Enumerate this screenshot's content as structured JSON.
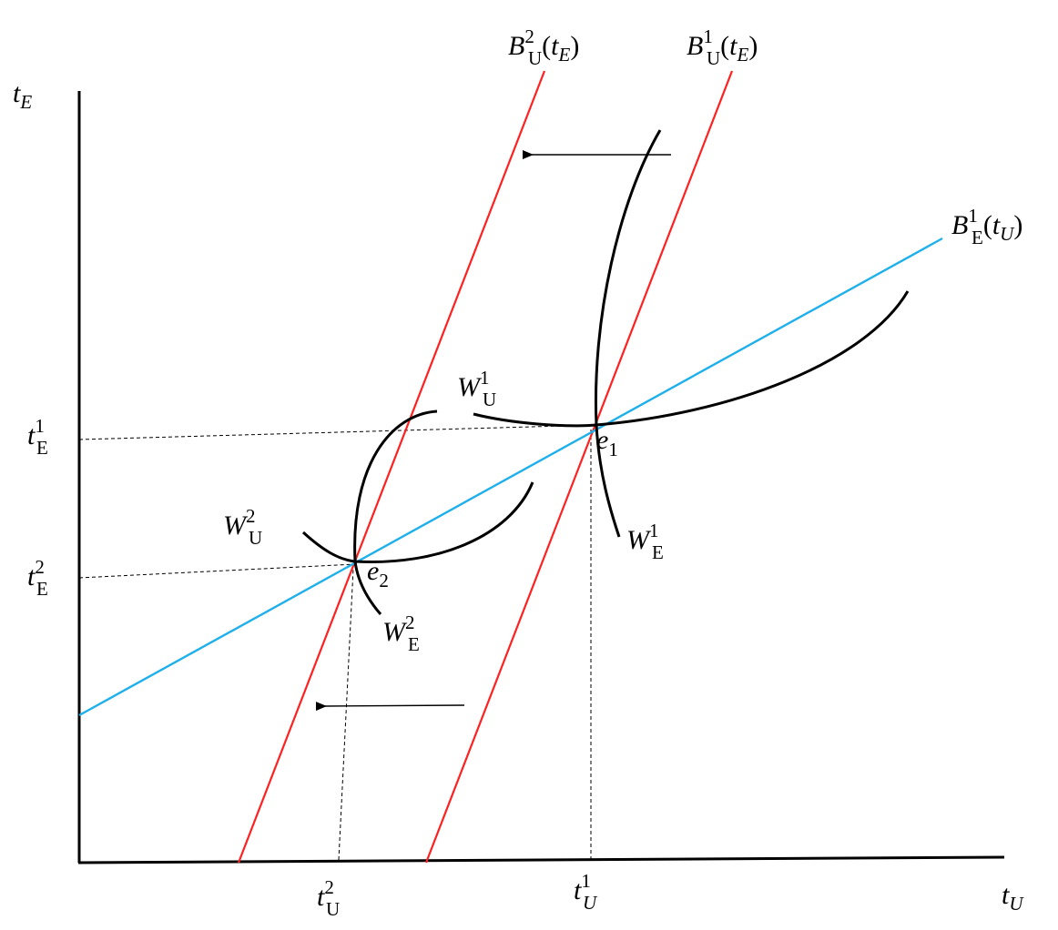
{
  "labels": {
    "y_axis": [
      "t",
      "E"
    ],
    "x_axis": [
      "t",
      "U"
    ],
    "b_u2": [
      "B",
      "2",
      "U",
      "(",
      "t",
      "E",
      ")"
    ],
    "b_u1": [
      "B",
      "1",
      "U",
      "(",
      "t",
      "E",
      ")"
    ],
    "b_e1": [
      "B",
      "1",
      "E",
      "(",
      "t",
      "U",
      ")"
    ],
    "w_u1": [
      "W",
      "1",
      "U"
    ],
    "w_u2": [
      "W",
      "2",
      "U"
    ],
    "w_e1": [
      "W",
      "1",
      "E"
    ],
    "w_e2": [
      "W",
      "2",
      "E"
    ],
    "e1": [
      "e",
      "1"
    ],
    "e2": [
      "e",
      "2"
    ],
    "t_e1": [
      "t",
      "1",
      "E"
    ],
    "t_e2": [
      "t",
      "2",
      "E"
    ],
    "t_u2": [
      "t",
      "2",
      "U"
    ],
    "t_u1": [
      "t",
      "1",
      "U"
    ]
  }
}
